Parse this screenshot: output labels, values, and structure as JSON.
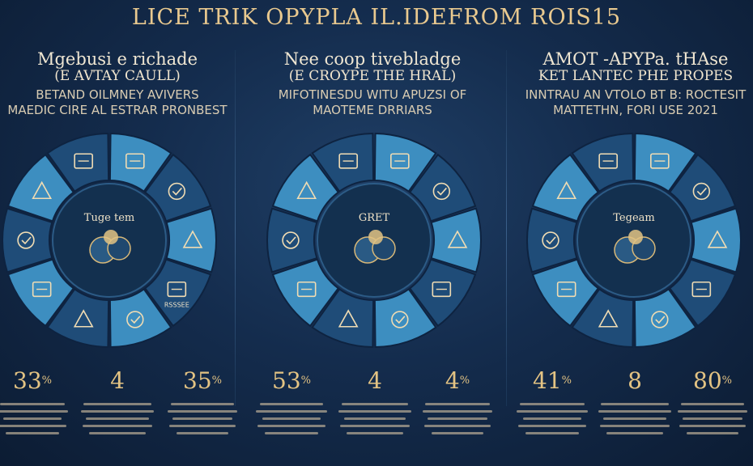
{
  "title": "LICE TRIK OPYPLA IL.IDEFROM ROIS15",
  "panels": [
    {
      "heading": "Mgebusi e richade",
      "subheading": "(E AVTAY CAULL)",
      "description": [
        "BETAND OILMNEY AVIVERS",
        "MAEDIC CIRE AL ESTRAR PRONBEST"
      ],
      "center_label": "Tuge tem",
      "center_icon": "coin-lightbulb-icon",
      "segment_icons": [
        "certificate-icon",
        "screen-icon",
        "book-icon",
        "clipboard-icon",
        "chart-icon",
        "document-icon",
        "grid-icon",
        "notes-icon",
        "phone-icon",
        "tablet-icon"
      ],
      "segment_labels": [
        "",
        "",
        "",
        "RSSSEE",
        "",
        "",
        "",
        "",
        "",
        ""
      ],
      "stats": [
        {
          "value": "33",
          "unit": "%"
        },
        {
          "value": "4",
          "unit": ""
        },
        {
          "value": "35",
          "unit": "%"
        }
      ]
    },
    {
      "heading": "Nee coop tivebladge",
      "subheading": "(E CROYPE THE HRAL)",
      "description": [
        "MIFOTINESDU WITU APUZSI OF",
        "MAOTEME DRRIARS"
      ],
      "center_label": "GRET",
      "center_icon": "microscope-icon",
      "segment_icons": [
        "target-icon",
        "network-icon",
        "flask-icon",
        "scales-icon",
        "lab-icon",
        "gear-icon",
        "compass-icon",
        "brain-icon",
        "wrench-icon",
        "globe-icon"
      ],
      "segment_labels": [
        "",
        "",
        "",
        "",
        "",
        "",
        "",
        "",
        "",
        ""
      ],
      "stats": [
        {
          "value": "53",
          "unit": "%"
        },
        {
          "value": "4",
          "unit": ""
        },
        {
          "value": "4",
          "unit": "%"
        }
      ]
    },
    {
      "heading": "AMOT -APYPa. tHAse",
      "subheading": "KET LANTEC PHE PROPES",
      "description": [
        "INNTRAU AN VTOLO BT B: ROCTESIT",
        "MATTETHN, FORI USE 2021"
      ],
      "center_label": "Tegeam",
      "center_icon": "shield-icon",
      "segment_icons": [
        "cloud-icon",
        "building-icon",
        "house-icon",
        "monitor-icon",
        "hand-icon",
        "tools-icon",
        "scales-icon",
        "camera-icon",
        "medal-icon",
        "globe-icon"
      ],
      "segment_labels": [
        "",
        "",
        "",
        "",
        "",
        "",
        "",
        "",
        "",
        ""
      ],
      "stats": [
        {
          "value": "41",
          "unit": "%"
        },
        {
          "value": "8",
          "unit": ""
        },
        {
          "value": "80",
          "unit": "%"
        }
      ]
    }
  ],
  "colors": {
    "background": "#142c4d",
    "ring_dark": "#1f4c78",
    "ring_light": "#3d8ec0",
    "accent_gold": "#e3c383",
    "text_cream": "#efe6d2"
  }
}
